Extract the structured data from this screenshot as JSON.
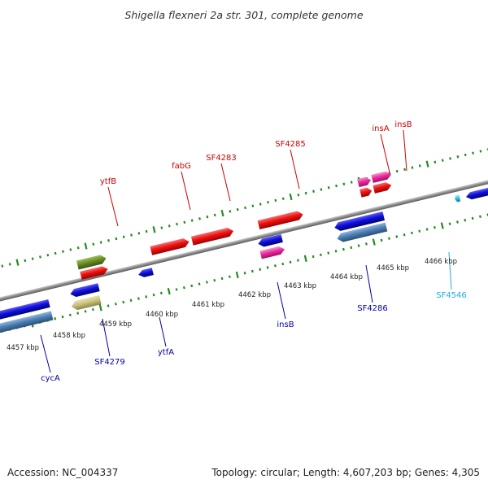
{
  "title": "Shigella flexneri 2a str. 301, complete genome",
  "footer": {
    "accession": "Accession: NC_004337",
    "summary": "Topology: circular; Length: 4,607,203 bp; Genes: 4,305"
  },
  "colors": {
    "forward_label": "#cc0000",
    "reverse_label": "#0000aa",
    "highlight_label": "#22aadd",
    "tick": "#228b22",
    "backbone": "#8c8c8c",
    "red": "#ee1111",
    "blue": "#1010dd",
    "steel": "#4a7fb5",
    "olive": "#6b8e23",
    "pink": "#ee2aa0",
    "khaki": "#c8c27a",
    "cyan": "#20c8e8"
  },
  "scale_labels": [
    {
      "label": "4457 kbp"
    },
    {
      "label": "4458 kbp"
    },
    {
      "label": "4459 kbp"
    },
    {
      "label": "4460 kbp"
    },
    {
      "label": "4461 kbp"
    },
    {
      "label": "4462 kbp"
    },
    {
      "label": "4463 kbp"
    },
    {
      "label": "4464 kbp"
    },
    {
      "label": "4465 kbp"
    },
    {
      "label": "4466 kbp"
    }
  ],
  "gene_labels": [
    {
      "name": "ytfB",
      "strand": "forward"
    },
    {
      "name": "fabG",
      "strand": "forward"
    },
    {
      "name": "SF4283",
      "strand": "forward"
    },
    {
      "name": "SF4285",
      "strand": "forward"
    },
    {
      "name": "insA",
      "strand": "forward"
    },
    {
      "name": "insB",
      "strand": "forward"
    },
    {
      "name": "cycA",
      "strand": "reverse"
    },
    {
      "name": "SF4279",
      "strand": "reverse"
    },
    {
      "name": "ytfA",
      "strand": "reverse"
    },
    {
      "name": "insB",
      "strand": "reverse"
    },
    {
      "name": "SF4286",
      "strand": "reverse"
    },
    {
      "name": "SF4546",
      "strand": "highlight"
    }
  ]
}
